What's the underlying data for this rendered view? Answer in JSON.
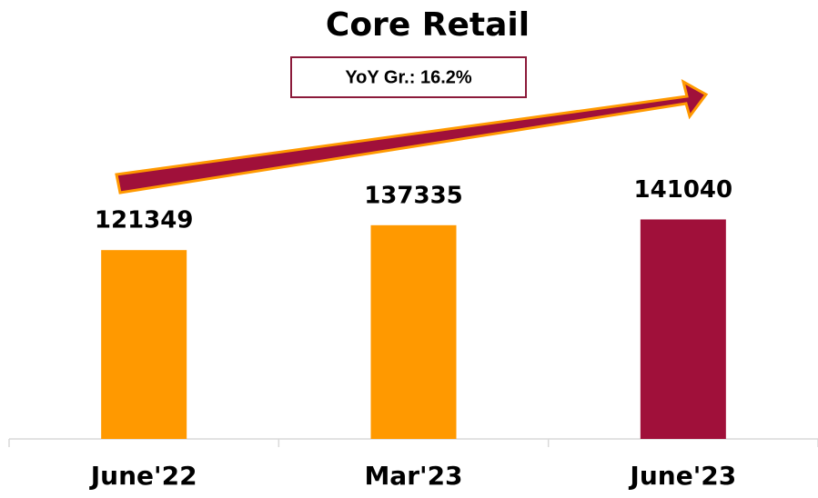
{
  "chart_data": {
    "type": "bar",
    "title": "Core Retail",
    "annotation": "YoY Gr.: 16.2%",
    "categories": [
      "June'22",
      "Mar'23",
      "June'23"
    ],
    "values": [
      121349,
      137335,
      141040
    ],
    "colors": [
      "#ff9900",
      "#ff9900",
      "#a0103a"
    ],
    "ylim": [
      0,
      160000
    ]
  }
}
